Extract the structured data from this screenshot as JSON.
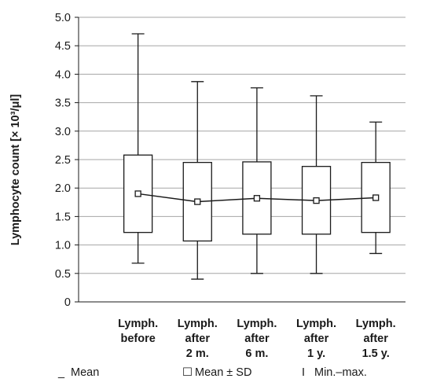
{
  "chart_data": {
    "type": "box",
    "ylabel": "Lymphocyte count [× 10³/μl]",
    "ylim": [
      0,
      5.0
    ],
    "yticks": [
      "0",
      "0.5",
      "1.0",
      "1.5",
      "2.0",
      "2.5",
      "3.0",
      "3.5",
      "4.0",
      "4.5",
      "5.0"
    ],
    "grid": true,
    "categories": [
      [
        "Lymph.",
        "before"
      ],
      [
        "Lymph.",
        "after",
        "2 m."
      ],
      [
        "Lymph.",
        "after",
        "6 m."
      ],
      [
        "Lymph.",
        "after",
        "1 y."
      ],
      [
        "Lymph.",
        "after",
        "1.5 y."
      ]
    ],
    "series": [
      {
        "name": "Mean",
        "values": [
          1.9,
          1.76,
          1.82,
          1.78,
          1.83
        ]
      },
      {
        "name": "Mean − SD",
        "values": [
          1.22,
          1.07,
          1.19,
          1.19,
          1.22
        ]
      },
      {
        "name": "Mean + SD",
        "values": [
          2.58,
          2.45,
          2.46,
          2.38,
          2.45
        ]
      },
      {
        "name": "Min.",
        "values": [
          0.68,
          0.4,
          0.5,
          0.5,
          0.85
        ]
      },
      {
        "name": "Max.",
        "values": [
          4.71,
          3.87,
          3.76,
          3.62,
          3.16
        ]
      }
    ],
    "legend": {
      "position": "bottom",
      "items": [
        {
          "symbol": "_",
          "label": "Mean"
        },
        {
          "symbol": "☐",
          "label": "Mean ± SD"
        },
        {
          "symbol": "I",
          "label": "Min.–max."
        }
      ]
    }
  }
}
